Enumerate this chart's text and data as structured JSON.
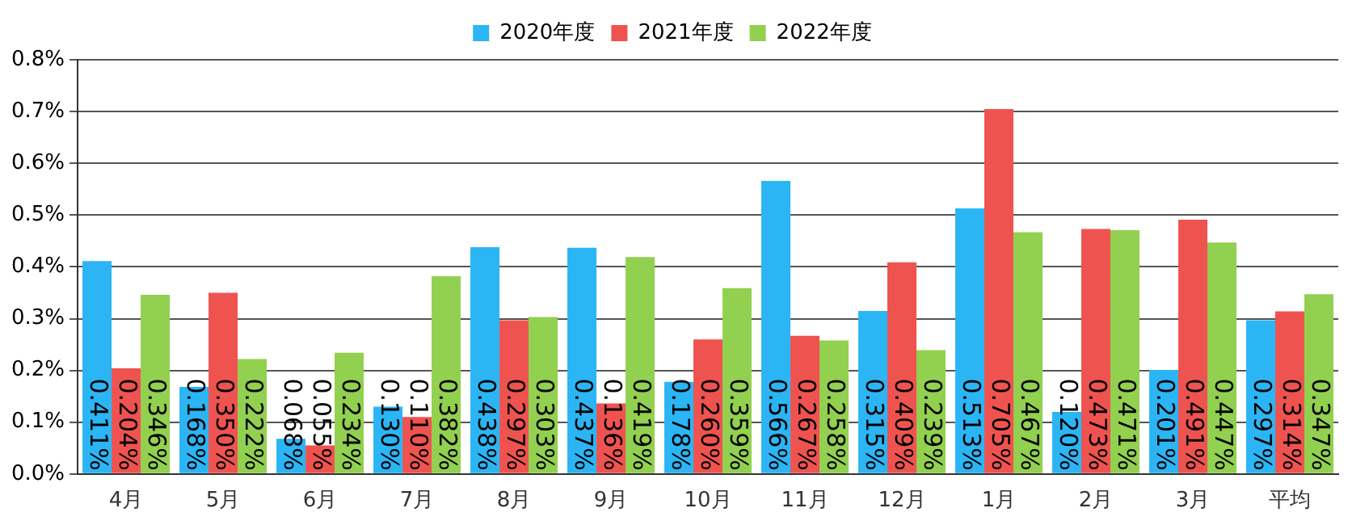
{
  "chart_data": {
    "type": "bar",
    "categories": [
      "4月",
      "5月",
      "6月",
      "7月",
      "8月",
      "9月",
      "10月",
      "11月",
      "12月",
      "1月",
      "2月",
      "3月",
      "平均"
    ],
    "series": [
      {
        "name": "2020年度",
        "color": "#2bb5f5",
        "values": [
          0.411,
          0.168,
          0.068,
          0.13,
          0.438,
          0.437,
          0.178,
          0.566,
          0.315,
          0.513,
          0.12,
          0.201,
          0.297
        ],
        "value_labels": [
          "0.411%",
          "0.168%",
          "0.068%",
          "0.130%",
          "0.438%",
          "0.437%",
          "0.178%",
          "0.566%",
          "0.315%",
          "0.513%",
          "0.120%",
          "0.201%",
          "0.297%"
        ]
      },
      {
        "name": "2021年度",
        "color": "#ef5350",
        "values": [
          0.204,
          0.35,
          0.055,
          0.11,
          0.297,
          0.136,
          0.26,
          0.267,
          0.409,
          0.705,
          0.473,
          0.491,
          0.314
        ],
        "value_labels": [
          "0.204%",
          "0.350%",
          "0.055%",
          "0.110%",
          "0.297%",
          "0.136%",
          "0.260%",
          "0.267%",
          "0.409%",
          "0.705%",
          "0.473%",
          "0.491%",
          "0.314%"
        ]
      },
      {
        "name": "2022年度",
        "color": "#92d050",
        "values": [
          0.346,
          0.222,
          0.234,
          0.382,
          0.303,
          0.419,
          0.359,
          0.258,
          0.239,
          0.467,
          0.471,
          0.447,
          0.347
        ],
        "value_labels": [
          "0.346%",
          "0.222%",
          "0.234%",
          "0.382%",
          "0.303%",
          "0.419%",
          "0.359%",
          "0.258%",
          "0.239%",
          "0.467%",
          "0.471%",
          "0.447%",
          "0.347%"
        ]
      }
    ],
    "ylim": [
      0,
      0.8
    ],
    "yticks": [
      {
        "value": 0,
        "label": "0.0%"
      },
      {
        "value": 0.1,
        "label": "0.1%"
      },
      {
        "value": 0.2,
        "label": "0.2%"
      },
      {
        "value": 0.3,
        "label": "0.3%"
      },
      {
        "value": 0.4,
        "label": "0.4%"
      },
      {
        "value": 0.5,
        "label": "0.5%"
      },
      {
        "value": 0.6,
        "label": "0.6%"
      },
      {
        "value": 0.7,
        "label": "0.7%"
      },
      {
        "value": 0.8,
        "label": "0.8%"
      }
    ],
    "grid": "y",
    "legend": "top"
  }
}
